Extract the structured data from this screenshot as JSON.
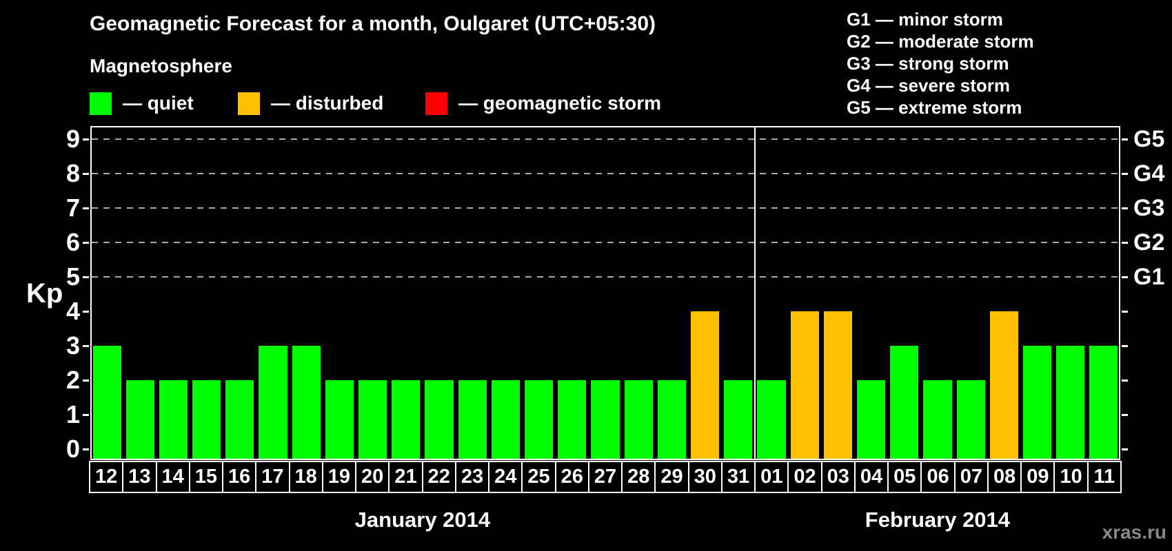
{
  "title": "Geomagnetic Forecast for a month, Oulgaret (UTC+05:30)",
  "subtitle": "Magnetosphere",
  "legend": {
    "items": [
      {
        "name": "quiet",
        "label": "— quiet",
        "color": "#00ff00"
      },
      {
        "name": "disturbed",
        "label": "— disturbed",
        "color": "#ffc000"
      },
      {
        "name": "storm",
        "label": "— geomagnetic storm",
        "color": "#ff0000"
      }
    ]
  },
  "storm_scale": [
    {
      "label": "G1 — minor storm"
    },
    {
      "label": "G2 — moderate storm"
    },
    {
      "label": "G3 — strong storm"
    },
    {
      "label": "G4 — severe storm"
    },
    {
      "label": "G5 — extreme storm"
    }
  ],
  "watermark": "xras.ru",
  "chart_data": {
    "type": "bar",
    "title": "Geomagnetic Forecast for a month, Oulgaret (UTC+05:30)",
    "ylabel": "Kp",
    "ylim": [
      0,
      9
    ],
    "y_ticks": [
      0,
      1,
      2,
      3,
      4,
      5,
      6,
      7,
      8,
      9
    ],
    "grid_levels": [
      5,
      6,
      7,
      8,
      9
    ],
    "grid": "dashed horizontal lines at Kp 5-9",
    "legend_position": "top",
    "right_axis": [
      {
        "kp": 5,
        "label": "G1"
      },
      {
        "kp": 6,
        "label": "G2"
      },
      {
        "kp": 7,
        "label": "G3"
      },
      {
        "kp": 8,
        "label": "G4"
      },
      {
        "kp": 9,
        "label": "G5"
      }
    ],
    "status_colors": {
      "quiet": "#00ff00",
      "disturbed": "#ffc000",
      "storm": "#ff0000"
    },
    "months": [
      {
        "label": "January 2014",
        "categories": [
          "12",
          "13",
          "14",
          "15",
          "16",
          "17",
          "18",
          "19",
          "20",
          "21",
          "22",
          "23",
          "24",
          "25",
          "26",
          "27",
          "28",
          "29",
          "30",
          "31"
        ],
        "values": [
          3,
          2,
          2,
          2,
          2,
          3,
          3,
          2,
          2,
          2,
          2,
          2,
          2,
          2,
          2,
          2,
          2,
          2,
          4,
          2
        ],
        "status": [
          "quiet",
          "quiet",
          "quiet",
          "quiet",
          "quiet",
          "quiet",
          "quiet",
          "quiet",
          "quiet",
          "quiet",
          "quiet",
          "quiet",
          "quiet",
          "quiet",
          "quiet",
          "quiet",
          "quiet",
          "quiet",
          "disturbed",
          "quiet"
        ]
      },
      {
        "label": "February 2014",
        "categories": [
          "01",
          "02",
          "03",
          "04",
          "05",
          "06",
          "07",
          "08",
          "09",
          "10",
          "11"
        ],
        "values": [
          2,
          4,
          4,
          2,
          3,
          2,
          2,
          4,
          3,
          3,
          3
        ],
        "status": [
          "quiet",
          "disturbed",
          "disturbed",
          "quiet",
          "quiet",
          "quiet",
          "quiet",
          "disturbed",
          "quiet",
          "quiet",
          "quiet"
        ]
      }
    ]
  }
}
